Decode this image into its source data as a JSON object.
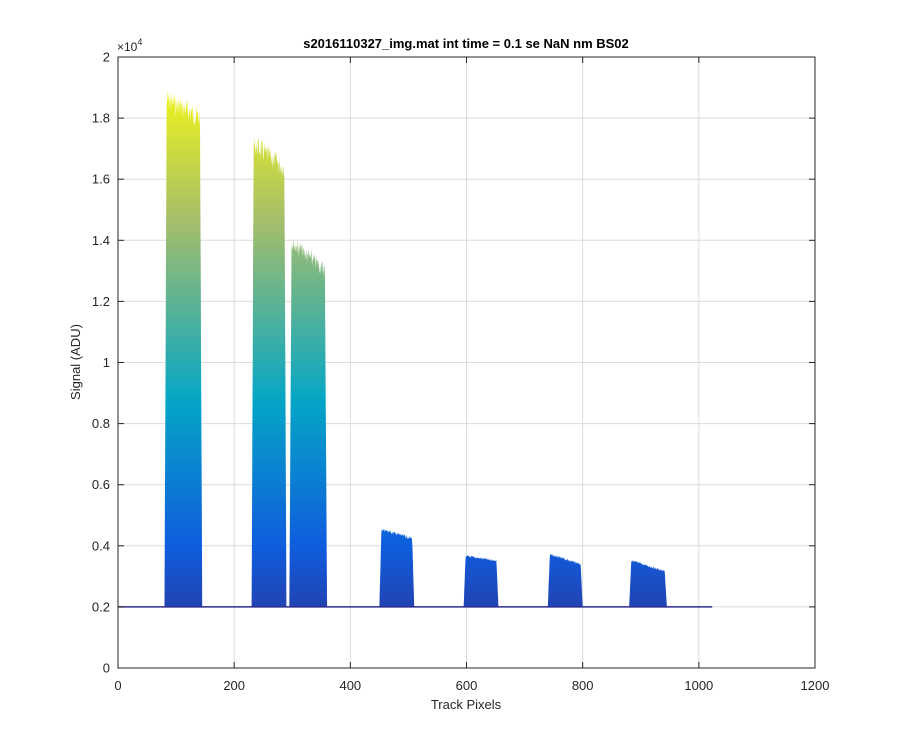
{
  "chart_data": {
    "type": "area",
    "title": "s2016110327_img.mat int time = 0.1 se  NaN nm BS02",
    "xlabel": "Track Pixels",
    "ylabel": "Signal (ADU)",
    "exponent_label": "×10",
    "exponent_power": "4",
    "xlim": [
      0,
      1200
    ],
    "ylim": [
      0,
      20000
    ],
    "x_ticks": [
      0,
      200,
      400,
      600,
      800,
      1000,
      1200
    ],
    "x_tick_labels": [
      "0",
      "200",
      "400",
      "600",
      "800",
      "1000",
      "1200"
    ],
    "y_ticks": [
      0,
      2000,
      4000,
      6000,
      8000,
      10000,
      12000,
      14000,
      16000,
      18000,
      20000
    ],
    "y_tick_labels": [
      "0",
      "0.2",
      "0.4",
      "0.6",
      "0.8",
      "1",
      "1.2",
      "1.4",
      "1.6",
      "1.8",
      "2"
    ],
    "grid": true,
    "colormap": "parula",
    "colors": {
      "parula_low": "#352a87",
      "parula_blue": "#0f5cdd",
      "parula_cyan": "#06a6c6",
      "parula_green": "#a5be6a",
      "parula_yellow": "#f9fb0e",
      "baseline": "#2e2a8c",
      "grid": "#dcdcdc",
      "axes": "#262626"
    },
    "baseline": 2000,
    "x_end": 1023,
    "bands": [
      {
        "x_start": 80,
        "x_end": 145,
        "peak": 19000,
        "top_dip": 18400
      },
      {
        "x_start": 230,
        "x_end": 290,
        "peak": 17500,
        "top_dip": 16700
      },
      {
        "x_start": 295,
        "x_end": 360,
        "peak": 14200,
        "top_dip": 13300
      },
      {
        "x_start": 450,
        "x_end": 510,
        "peak": 4600,
        "top_dip": 4300
      },
      {
        "x_start": 595,
        "x_end": 655,
        "peak": 3700,
        "top_dip": 3550
      },
      {
        "x_start": 740,
        "x_end": 800,
        "peak": 3750,
        "top_dip": 3450
      },
      {
        "x_start": 880,
        "x_end": 945,
        "peak": 3550,
        "top_dip": 3200
      }
    ]
  }
}
